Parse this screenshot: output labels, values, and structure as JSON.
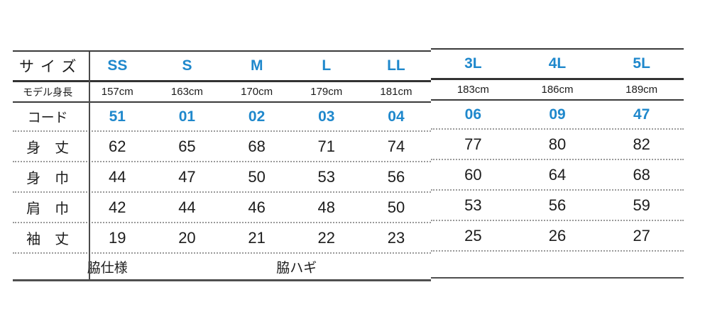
{
  "colors": {
    "accent": "#1f88cc",
    "text": "#1c1c1c",
    "solid_line": "#3a3a3a",
    "dotted_line": "#9a9a9a",
    "background": "#ffffff"
  },
  "table": {
    "header_label": "サイズ",
    "sizes": [
      "SS",
      "S",
      "M",
      "L",
      "LL",
      "3L",
      "4L",
      "5L"
    ],
    "rows": [
      {
        "label": "モデル身長",
        "values": [
          "157cm",
          "163cm",
          "170cm",
          "179cm",
          "181cm",
          "183cm",
          "186cm",
          "189cm"
        ]
      },
      {
        "label": "コード",
        "values": [
          "51",
          "01",
          "02",
          "03",
          "04",
          "06",
          "09",
          "47"
        ]
      },
      {
        "label": "身　丈",
        "values": [
          "62",
          "65",
          "68",
          "71",
          "74",
          "77",
          "80",
          "82"
        ]
      },
      {
        "label": "身　巾",
        "values": [
          "44",
          "47",
          "50",
          "53",
          "56",
          "60",
          "64",
          "68"
        ]
      },
      {
        "label": "肩　巾",
        "values": [
          "42",
          "44",
          "46",
          "48",
          "50",
          "53",
          "56",
          "59"
        ]
      },
      {
        "label": "袖　丈",
        "values": [
          "19",
          "20",
          "21",
          "22",
          "23",
          "25",
          "26",
          "27"
        ]
      },
      {
        "label": "脇仕様",
        "values": [
          "脇ハギ"
        ]
      }
    ]
  },
  "chart_data": {
    "type": "table",
    "title": "",
    "columns": [
      "サイズ",
      "SS",
      "S",
      "M",
      "L",
      "LL",
      "3L",
      "4L",
      "5L"
    ],
    "rows": [
      [
        "モデル身長",
        "157cm",
        "163cm",
        "170cm",
        "179cm",
        "181cm",
        "183cm",
        "186cm",
        "189cm"
      ],
      [
        "コード",
        "51",
        "01",
        "02",
        "03",
        "04",
        "06",
        "09",
        "47"
      ],
      [
        "身丈",
        62,
        65,
        68,
        71,
        74,
        77,
        80,
        82
      ],
      [
        "身巾",
        44,
        47,
        50,
        53,
        56,
        60,
        64,
        68
      ],
      [
        "肩巾",
        42,
        44,
        46,
        48,
        50,
        53,
        56,
        59
      ],
      [
        "袖丈",
        19,
        20,
        21,
        22,
        23,
        25,
        26,
        27
      ],
      [
        "脇仕様",
        "脇ハギ",
        "",
        "",
        "",
        "",
        "",
        "",
        ""
      ]
    ],
    "layout_hints": {
      "accent_rows": [
        "サイズ",
        "コード"
      ],
      "split_after_column": "LL",
      "grid": "horizontal rules only; dotted separators between measurement rows; single vertical divider after label column"
    }
  }
}
